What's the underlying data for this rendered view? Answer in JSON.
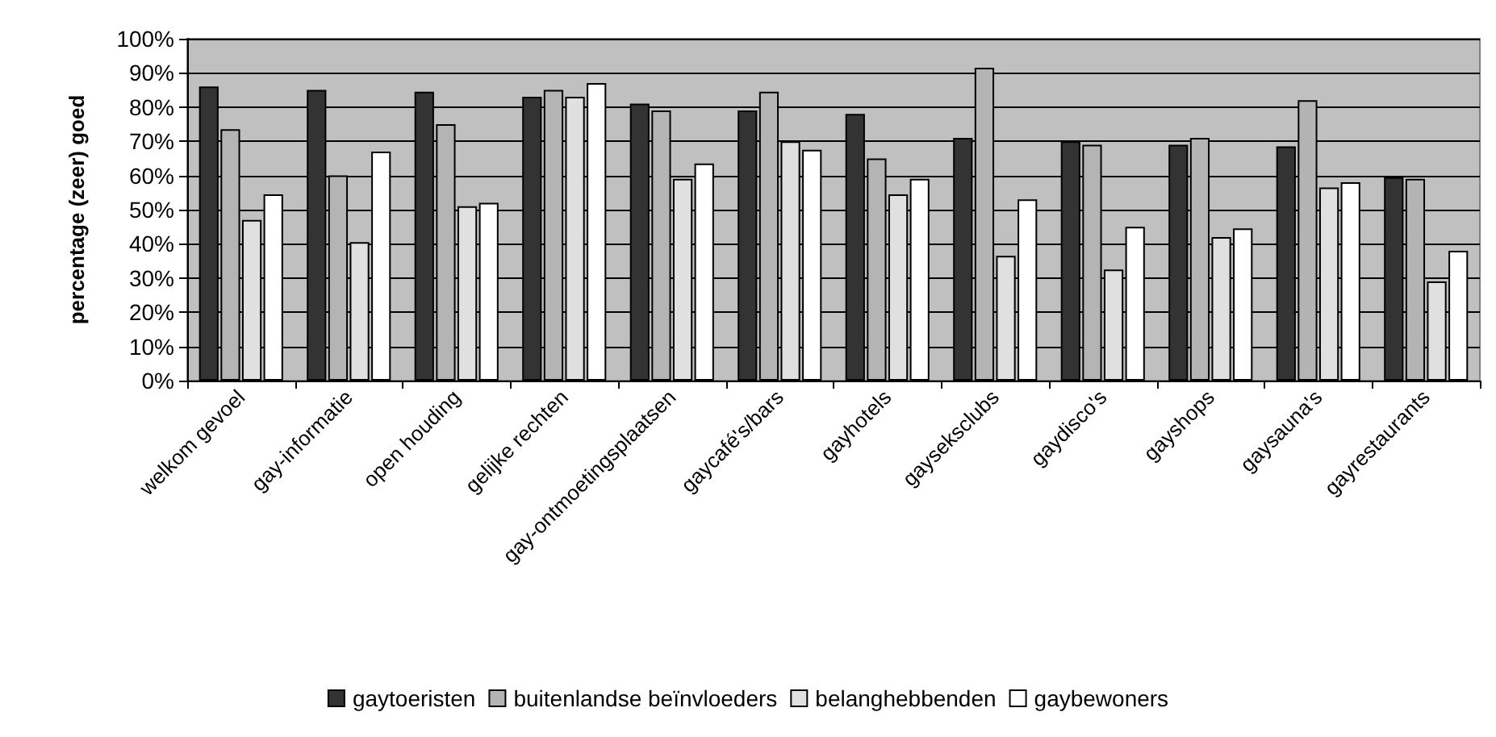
{
  "chart_data": {
    "type": "bar",
    "ylabel": "percentage (zeer) goed",
    "categories": [
      "welkom gevoel",
      "gay-informatie",
      "open houding",
      "gelijke rechten",
      "gay-ontmoetingsplaatsen",
      "gaycafé's/bars",
      "gayhotels",
      "gayseksclubs",
      "gaydisco's",
      "gayshops",
      "gaysauna's",
      "gayrestaurants"
    ],
    "series": [
      {
        "name": "gaytoeristen",
        "color": "#333333",
        "values": [
          86,
          85,
          84.5,
          83,
          81,
          79,
          78,
          71,
          70,
          69,
          68.5,
          59.5
        ]
      },
      {
        "name": "buitenlandse beïnvloeders",
        "color": "#b4b4b4",
        "values": [
          73.5,
          60,
          75,
          85,
          79,
          84.5,
          65,
          91.5,
          69,
          71,
          82,
          59
        ]
      },
      {
        "name": "belanghebbenden",
        "color": "#e0e0e0",
        "values": [
          47,
          40.5,
          51,
          83,
          59,
          70,
          54.5,
          36.5,
          32.5,
          42,
          56.5,
          29
        ]
      },
      {
        "name": "gaybewoners",
        "color": "#ffffff",
        "values": [
          54.5,
          67,
          52,
          87,
          63.5,
          67.5,
          59,
          53,
          45,
          44.5,
          58,
          38
        ]
      }
    ],
    "ylim": [
      0,
      100
    ],
    "yticks": [
      {
        "value": 0,
        "label": "0%"
      },
      {
        "value": 10,
        "label": "10%"
      },
      {
        "value": 20,
        "label": "20%"
      },
      {
        "value": 30,
        "label": "30%"
      },
      {
        "value": 40,
        "label": "40%"
      },
      {
        "value": 50,
        "label": "50%"
      },
      {
        "value": 60,
        "label": "60%"
      },
      {
        "value": 70,
        "label": "70%"
      },
      {
        "value": 80,
        "label": "80%"
      },
      {
        "value": 90,
        "label": "90%"
      },
      {
        "value": 100,
        "label": "100%"
      }
    ],
    "grid": "y",
    "legend": "bottom"
  }
}
